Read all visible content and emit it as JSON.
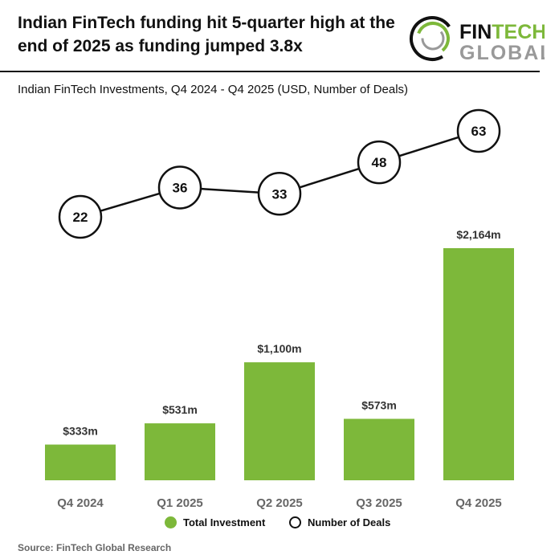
{
  "title": "Indian FinTech funding hit 5-quarter high at the end of 2025 as funding jumped 3.8x",
  "logo": {
    "line1": "FIN",
    "line1b": "TECH",
    "line2": "GLOBAL"
  },
  "subtitle": "Indian FinTech Investments, Q4 2024 - Q4 2025 (USD, Number of Deals)",
  "source": "Source: FinTech Global Research",
  "colors": {
    "bar": "#7DB83A",
    "line": "#111111"
  },
  "chart_data": {
    "type": "bar",
    "title": "Indian FinTech Investments, Q4 2024 - Q4 2025 (USD, Number of Deals)",
    "categories": [
      "Q4 2024",
      "Q1 2025",
      "Q2 2025",
      "Q3 2025",
      "Q4 2025"
    ],
    "series": [
      {
        "name": "Total Investment",
        "type": "bar",
        "values": [
          333,
          531,
          1100,
          573,
          2164
        ],
        "labels": [
          "$333m",
          "$531m",
          "$1,100m",
          "$573m",
          "$2,164m"
        ]
      },
      {
        "name": "Number of Deals",
        "type": "line",
        "values": [
          22,
          36,
          33,
          48,
          63
        ],
        "labels": [
          "22",
          "36",
          "33",
          "48",
          "63"
        ]
      }
    ],
    "legend": "bottom",
    "grid": false
  }
}
